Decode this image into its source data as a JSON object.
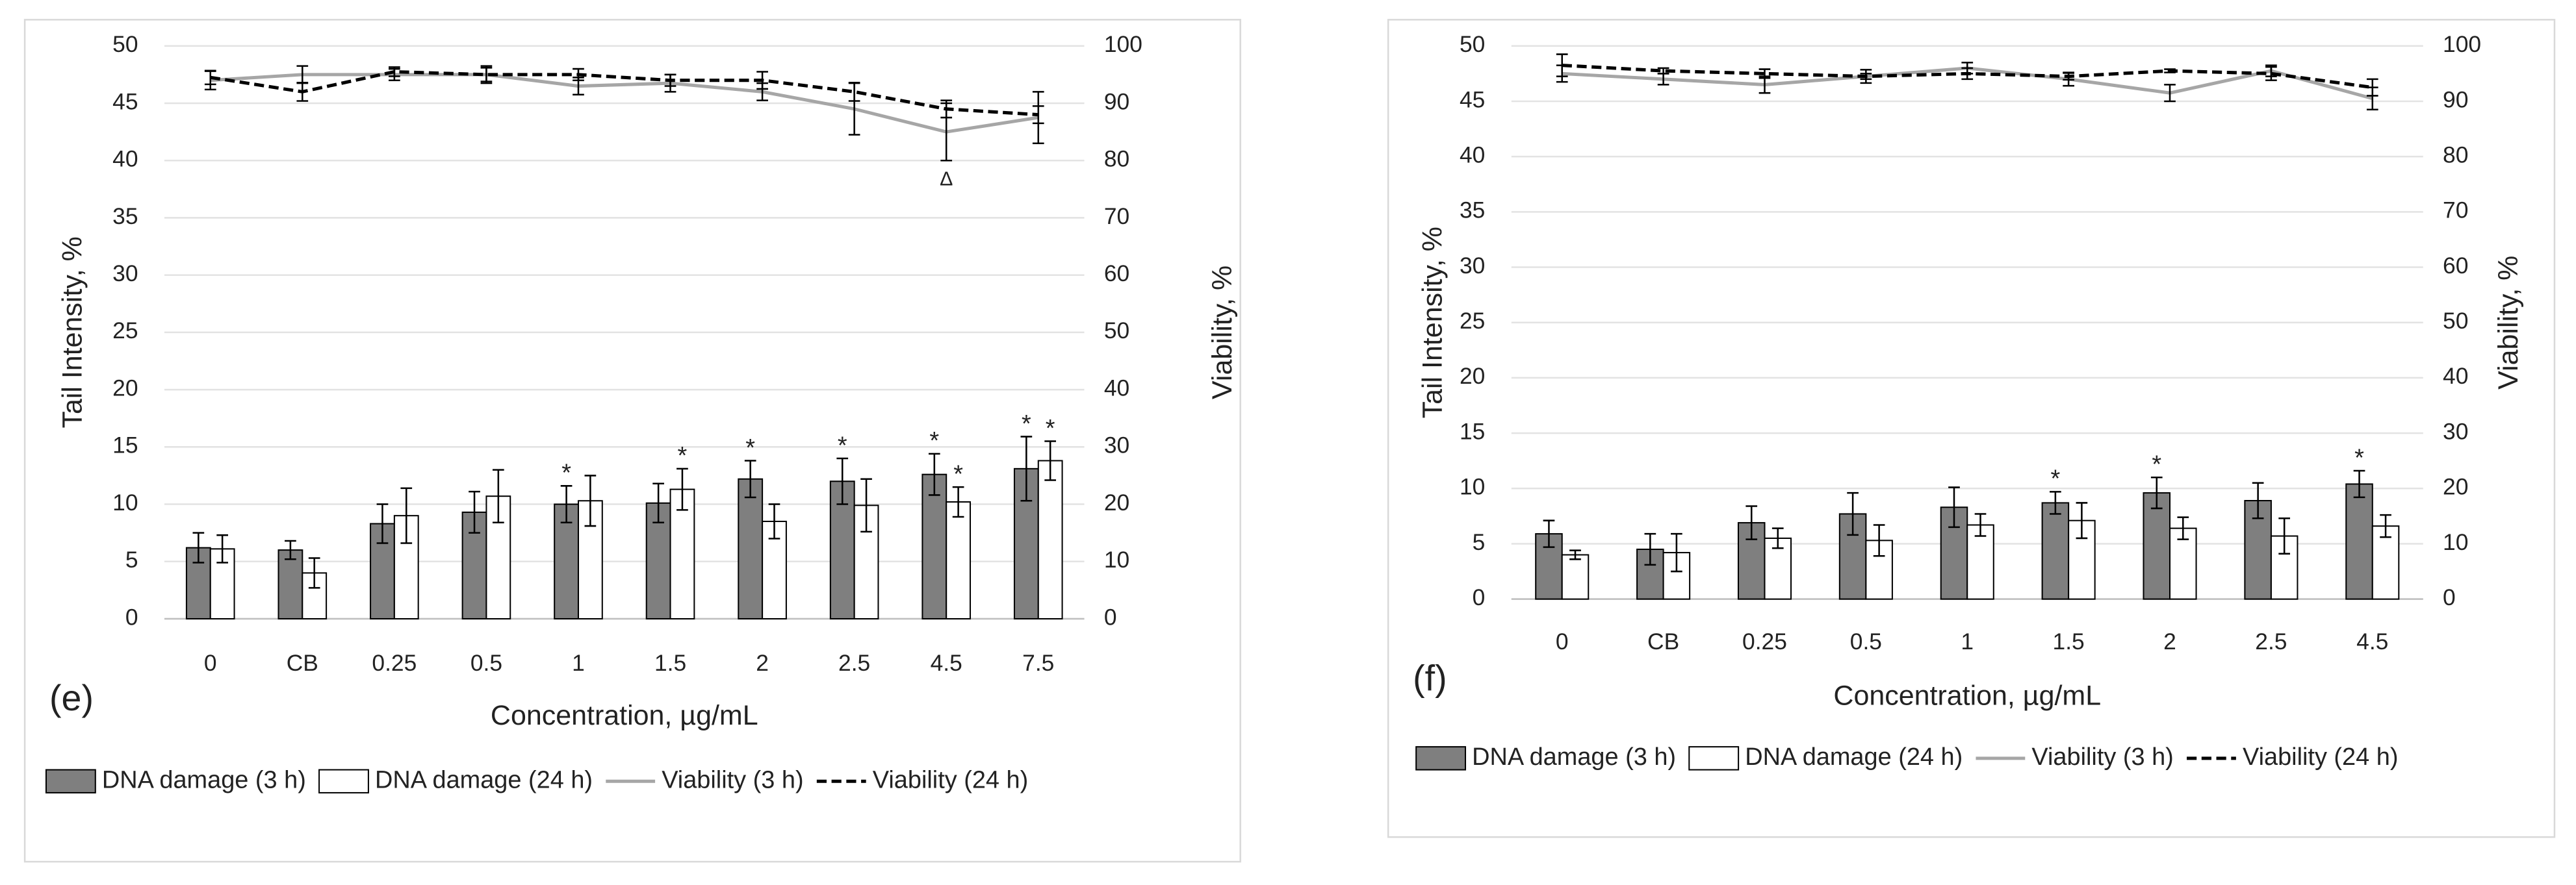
{
  "chart_data": [
    {
      "type": "bar",
      "panel_label": "(e)",
      "x_label": "Concentration, µg/mL",
      "y_label": "Tail Intensity, %",
      "y2_label": "Viability, %",
      "categories": [
        "0",
        "CB",
        "0.25",
        "0.5",
        "1",
        "1.5",
        "2",
        "2.5",
        "4.5",
        "7.5"
      ],
      "ylim": [
        0,
        50
      ],
      "yticks": [
        0,
        5,
        10,
        15,
        20,
        25,
        30,
        35,
        40,
        45,
        50
      ],
      "y2lim": [
        0,
        100
      ],
      "y2ticks": [
        0,
        10,
        20,
        30,
        40,
        50,
        60,
        70,
        80,
        90,
        100
      ],
      "grid": true,
      "series": [
        {
          "name": "DNA damage (3 h)",
          "type": "bar",
          "color": "#7f7f7f",
          "values": [
            6.2,
            6.0,
            8.3,
            9.3,
            10.0,
            10.1,
            12.2,
            12.0,
            12.6,
            13.1
          ],
          "errors": [
            1.3,
            0.8,
            1.7,
            1.8,
            1.6,
            1.7,
            1.6,
            2.0,
            1.8,
            2.8
          ]
        },
        {
          "name": "DNA damage (24 h)",
          "type": "bar",
          "color": "#ffffff",
          "values": [
            6.1,
            4.0,
            9.0,
            10.7,
            10.3,
            11.3,
            8.5,
            9.9,
            10.2,
            13.8
          ],
          "errors": [
            1.2,
            1.3,
            2.4,
            2.3,
            2.2,
            1.8,
            1.5,
            2.3,
            1.3,
            1.7
          ]
        },
        {
          "name": "Viability (3 h)",
          "type": "line",
          "axis": "y2",
          "color": "#a6a6a6",
          "dashed": false,
          "values": [
            94,
            95,
            95,
            95,
            93,
            93.5,
            92,
            89,
            85,
            87.5
          ],
          "errors": [
            1.6,
            1.5,
            1.0,
            1.5,
            1.5,
            1.5,
            1.5,
            4.5,
            5.0,
            4.5
          ]
        },
        {
          "name": "Viability (24 h)",
          "type": "line",
          "axis": "y2",
          "color": "#000000",
          "dashed": true,
          "values": [
            94.5,
            92,
            95.5,
            95,
            95,
            94,
            94,
            92,
            89,
            88
          ],
          "errors": [
            1.2,
            1.6,
            0.8,
            1.2,
            1.0,
            1.0,
            1.5,
            1.6,
            1.5,
            1.5
          ]
        }
      ],
      "annotations": [
        {
          "text": "*",
          "series": 0,
          "index": 4
        },
        {
          "text": "*",
          "series": 0,
          "index": 6
        },
        {
          "text": "*",
          "series": 0,
          "index": 7
        },
        {
          "text": "*",
          "series": 0,
          "index": 8
        },
        {
          "text": "*",
          "series": 0,
          "index": 9
        },
        {
          "text": "*",
          "series": 1,
          "index": 5
        },
        {
          "text": "*",
          "series": 1,
          "index": 8
        },
        {
          "text": "*",
          "series": 1,
          "index": 9
        },
        {
          "text": "Δ",
          "series": 2,
          "index": 8
        }
      ]
    },
    {
      "type": "bar",
      "panel_label": "(f)",
      "x_label": "Concentration, µg/mL",
      "y_label": "Tail Intensity, %",
      "y2_label": "Viability, %",
      "categories": [
        "0",
        "CB",
        "0.25",
        "0.5",
        "1",
        "1.5",
        "2",
        "2.5",
        "4.5"
      ],
      "ylim": [
        0,
        50
      ],
      "yticks": [
        0,
        5,
        10,
        15,
        20,
        25,
        30,
        35,
        40,
        45,
        50
      ],
      "y2lim": [
        0,
        100
      ],
      "y2ticks": [
        0,
        10,
        20,
        30,
        40,
        50,
        60,
        70,
        80,
        90,
        100
      ],
      "grid": true,
      "series": [
        {
          "name": "DNA damage (3 h)",
          "type": "bar",
          "color": "#7f7f7f",
          "values": [
            5.9,
            4.5,
            6.9,
            7.7,
            8.3,
            8.7,
            9.6,
            8.9,
            10.4
          ],
          "errors": [
            1.2,
            1.4,
            1.5,
            1.9,
            1.8,
            1.0,
            1.4,
            1.6,
            1.2
          ]
        },
        {
          "name": "DNA damage (24 h)",
          "type": "bar",
          "color": "#ffffff",
          "values": [
            4.0,
            4.2,
            5.5,
            5.3,
            6.7,
            7.1,
            6.4,
            5.7,
            6.6
          ],
          "errors": [
            0.4,
            1.7,
            0.9,
            1.4,
            1.0,
            1.6,
            1.0,
            1.6,
            1.0
          ]
        },
        {
          "name": "Viability (3 h)",
          "type": "line",
          "axis": "y2",
          "color": "#a6a6a6",
          "dashed": false,
          "values": [
            95,
            94,
            93,
            94.5,
            96,
            94,
            91.5,
            95.5,
            90.5
          ],
          "errors": [
            1.5,
            1.0,
            1.5,
            1.2,
            1.0,
            1.2,
            1.5,
            1.0,
            2.0
          ]
        },
        {
          "name": "Viability (24 h)",
          "type": "line",
          "axis": "y2",
          "color": "#000000",
          "dashed": true,
          "values": [
            96.5,
            95.5,
            95,
            94.5,
            95,
            94.5,
            95.5,
            95,
            92.5
          ],
          "errors": [
            2.0,
            0.5,
            0.8,
            0.5,
            1.0,
            0.6,
            0.3,
            1.2,
            1.5
          ]
        }
      ],
      "annotations": [
        {
          "text": "*",
          "series": 0,
          "index": 5
        },
        {
          "text": "*",
          "series": 0,
          "index": 6
        },
        {
          "text": "*",
          "series": 0,
          "index": 8
        }
      ]
    }
  ]
}
